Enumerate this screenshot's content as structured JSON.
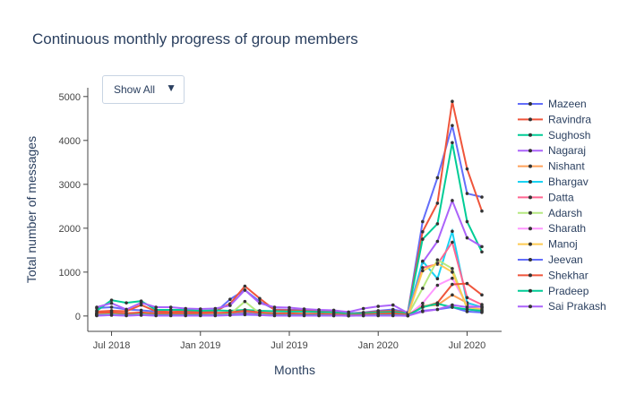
{
  "title": "Continuous monthly progress of group members",
  "dropdown": {
    "label": "Show All",
    "icon": "triangle-down-icon"
  },
  "chart_data": {
    "type": "line",
    "xlabel": "Months",
    "ylabel": "Total number of messages",
    "x_ticks": [
      "Jul 2018",
      "Jan 2019",
      "Jul 2019",
      "Jan 2020",
      "Jul 2020"
    ],
    "y_ticks": [
      0,
      1000,
      2000,
      3000,
      4000,
      5000
    ],
    "ylim": [
      -350,
      5200
    ],
    "grid": false,
    "legend_position": "right",
    "months": [
      "2018-06",
      "2018-07",
      "2018-08",
      "2018-09",
      "2018-10",
      "2018-11",
      "2018-12",
      "2019-01",
      "2019-02",
      "2019-03",
      "2019-04",
      "2019-05",
      "2019-06",
      "2019-07",
      "2019-08",
      "2019-09",
      "2019-10",
      "2019-11",
      "2019-12",
      "2020-01",
      "2020-02",
      "2020-03",
      "2020-04",
      "2020-05",
      "2020-06",
      "2020-07",
      "2020-08"
    ],
    "series": [
      {
        "name": "Mazeen",
        "color": "#636efa",
        "values": [
          180,
          200,
          150,
          130,
          100,
          90,
          100,
          70,
          80,
          380,
          590,
          330,
          150,
          140,
          140,
          120,
          100,
          60,
          80,
          120,
          150,
          80,
          2150,
          3150,
          4340,
          2790,
          2710
        ]
      },
      {
        "name": "Ravindra",
        "color": "#ef553b",
        "values": [
          100,
          120,
          110,
          250,
          110,
          90,
          110,
          90,
          110,
          280,
          680,
          400,
          140,
          130,
          120,
          110,
          90,
          50,
          70,
          100,
          120,
          70,
          1920,
          2570,
          4890,
          3350,
          2390
        ]
      },
      {
        "name": "Sughosh",
        "color": "#00cc96",
        "values": [
          120,
          360,
          300,
          340,
          140,
          140,
          140,
          120,
          130,
          120,
          140,
          120,
          110,
          100,
          100,
          90,
          80,
          50,
          60,
          80,
          90,
          60,
          1750,
          2100,
          3950,
          2150,
          1460
        ]
      },
      {
        "name": "Nagaraj",
        "color": "#ab63fa",
        "values": [
          200,
          290,
          150,
          300,
          200,
          200,
          170,
          160,
          170,
          240,
          590,
          290,
          200,
          190,
          160,
          140,
          130,
          90,
          170,
          220,
          250,
          70,
          1220,
          1700,
          2630,
          1780,
          1580
        ]
      },
      {
        "name": "Nishant",
        "color": "#ffa15a",
        "values": [
          60,
          70,
          60,
          70,
          50,
          50,
          50,
          50,
          60,
          60,
          80,
          60,
          50,
          50,
          50,
          40,
          40,
          20,
          30,
          40,
          50,
          30,
          230,
          250,
          480,
          300,
          200
        ]
      },
      {
        "name": "Bhargav",
        "color": "#19d3f3",
        "values": [
          40,
          50,
          40,
          40,
          30,
          30,
          30,
          30,
          40,
          50,
          70,
          50,
          40,
          30,
          30,
          30,
          20,
          10,
          20,
          30,
          30,
          20,
          1250,
          850,
          1930,
          300,
          200
        ]
      },
      {
        "name": "Datta",
        "color": "#ff6692",
        "values": [
          50,
          60,
          50,
          60,
          40,
          40,
          40,
          40,
          50,
          50,
          70,
          50,
          40,
          40,
          40,
          30,
          30,
          20,
          30,
          40,
          40,
          20,
          1100,
          1180,
          1680,
          420,
          260
        ]
      },
      {
        "name": "Adarsh",
        "color": "#b6e880",
        "values": [
          30,
          40,
          30,
          40,
          30,
          30,
          30,
          30,
          30,
          40,
          330,
          60,
          30,
          30,
          30,
          20,
          20,
          10,
          20,
          30,
          30,
          20,
          630,
          1280,
          1080,
          160,
          110
        ]
      },
      {
        "name": "Sharath",
        "color": "#ff97ff",
        "values": [
          30,
          30,
          30,
          30,
          20,
          20,
          20,
          20,
          30,
          30,
          50,
          30,
          30,
          20,
          20,
          20,
          20,
          10,
          20,
          20,
          20,
          10,
          290,
          700,
          860,
          250,
          180
        ]
      },
      {
        "name": "Manoj",
        "color": "#fecb52",
        "values": [
          20,
          30,
          20,
          30,
          20,
          20,
          20,
          20,
          20,
          30,
          40,
          30,
          20,
          20,
          20,
          20,
          10,
          10,
          10,
          20,
          20,
          10,
          1030,
          1200,
          1000,
          200,
          150
        ]
      },
      {
        "name": "Jeevan",
        "color": "#636efa",
        "values": [
          10,
          20,
          10,
          20,
          10,
          10,
          10,
          10,
          10,
          20,
          30,
          20,
          10,
          10,
          10,
          10,
          10,
          5,
          10,
          10,
          10,
          5,
          120,
          150,
          200,
          100,
          80
        ]
      },
      {
        "name": "Shekhar",
        "color": "#ef553b",
        "values": [
          70,
          80,
          60,
          80,
          60,
          60,
          60,
          60,
          70,
          80,
          120,
          80,
          60,
          60,
          50,
          50,
          40,
          20,
          30,
          50,
          60,
          30,
          200,
          300,
          720,
          740,
          480
        ]
      },
      {
        "name": "Pradeep",
        "color": "#00cc96",
        "values": [
          20,
          30,
          20,
          30,
          20,
          20,
          20,
          20,
          20,
          30,
          60,
          30,
          20,
          20,
          20,
          20,
          10,
          10,
          10,
          20,
          20,
          10,
          200,
          280,
          200,
          150,
          120
        ]
      },
      {
        "name": "Sai Prakash",
        "color": "#ab63fa",
        "values": [
          10,
          20,
          10,
          20,
          10,
          10,
          10,
          10,
          10,
          20,
          50,
          20,
          10,
          10,
          10,
          10,
          10,
          5,
          10,
          10,
          10,
          5,
          100,
          150,
          250,
          200,
          220
        ]
      }
    ]
  }
}
